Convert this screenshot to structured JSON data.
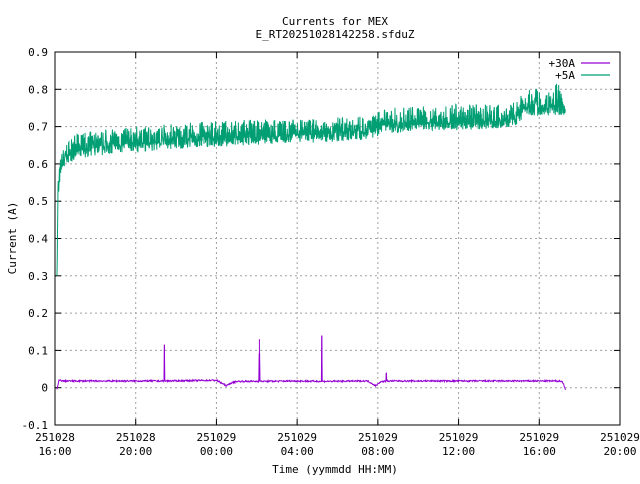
{
  "chart_data": {
    "type": "line",
    "title": "Currents for MEX",
    "subtitle": "E_RT20251028142258.sfduZ",
    "xlabel": "Time (yymmdd HH:MM)",
    "ylabel": "Current (A)",
    "xlim_hours_from_start": [
      0,
      28
    ],
    "ylim": [
      -0.1,
      0.9
    ],
    "grid": true,
    "legend_position": "top-right",
    "yticks": [
      "-0.1",
      "0",
      "0.1",
      "0.2",
      "0.3",
      "0.4",
      "0.5",
      "0.6",
      "0.7",
      "0.8",
      "0.9"
    ],
    "yticks_values": [
      -0.1,
      0,
      0.1,
      0.2,
      0.3,
      0.4,
      0.5,
      0.6,
      0.7,
      0.8,
      0.9
    ],
    "xticks": [
      {
        "hours": 0,
        "date": "251028",
        "time": "16:00"
      },
      {
        "hours": 4,
        "date": "251028",
        "time": "20:00"
      },
      {
        "hours": 8,
        "date": "251029",
        "time": "00:00"
      },
      {
        "hours": 12,
        "date": "251029",
        "time": "04:00"
      },
      {
        "hours": 16,
        "date": "251029",
        "time": "08:00"
      },
      {
        "hours": 20,
        "date": "251029",
        "time": "12:00"
      },
      {
        "hours": 24,
        "date": "251029",
        "time": "16:00"
      },
      {
        "hours": 28,
        "date": "251029",
        "time": "20:00"
      }
    ],
    "series": [
      {
        "name": "+30A",
        "color": "#9400d3",
        "x_hours": [
          0.1,
          0.2,
          0.4,
          4.0,
          5.4,
          5.42,
          5.44,
          8.0,
          8.5,
          8.7,
          9.0,
          10.1,
          10.13,
          10.16,
          12.0,
          13.2,
          13.22,
          13.24,
          15.5,
          15.9,
          16.1,
          16.4,
          16.42,
          16.44,
          20.0,
          24.0,
          25.1,
          25.2,
          25.3
        ],
        "y": [
          -0.005,
          0.02,
          0.018,
          0.018,
          0.018,
          0.115,
          0.018,
          0.02,
          0.005,
          0.012,
          0.017,
          0.017,
          0.13,
          0.017,
          0.018,
          0.017,
          0.14,
          0.017,
          0.018,
          0.005,
          0.015,
          0.018,
          0.04,
          0.018,
          0.018,
          0.018,
          0.018,
          0.01,
          -0.005
        ]
      },
      {
        "name": "+5A",
        "color": "#009e73",
        "x_hours": [
          0.1,
          0.15,
          0.3,
          0.6,
          1.0,
          2.0,
          4.0,
          6.0,
          8.0,
          10.0,
          12.0,
          14.0,
          15.5,
          16.5,
          18.0,
          20.0,
          22.0,
          22.8,
          23.3,
          24.0,
          25.0,
          25.3
        ],
        "y_mean": [
          0.3,
          0.53,
          0.59,
          0.62,
          0.635,
          0.645,
          0.655,
          0.665,
          0.67,
          0.675,
          0.68,
          0.685,
          0.69,
          0.705,
          0.71,
          0.71,
          0.715,
          0.72,
          0.755,
          0.755,
          0.755,
          0.735
        ],
        "y_min": [
          0.3,
          0.5,
          0.56,
          0.6,
          0.61,
          0.62,
          0.63,
          0.64,
          0.645,
          0.65,
          0.655,
          0.66,
          0.665,
          0.68,
          0.69,
          0.69,
          0.695,
          0.7,
          0.73,
          0.73,
          0.73,
          0.73
        ],
        "y_max": [
          0.3,
          0.57,
          0.63,
          0.66,
          0.68,
          0.69,
          0.7,
          0.71,
          0.715,
          0.72,
          0.72,
          0.725,
          0.73,
          0.75,
          0.755,
          0.76,
          0.76,
          0.77,
          0.8,
          0.8,
          0.82,
          0.745
        ]
      }
    ]
  }
}
